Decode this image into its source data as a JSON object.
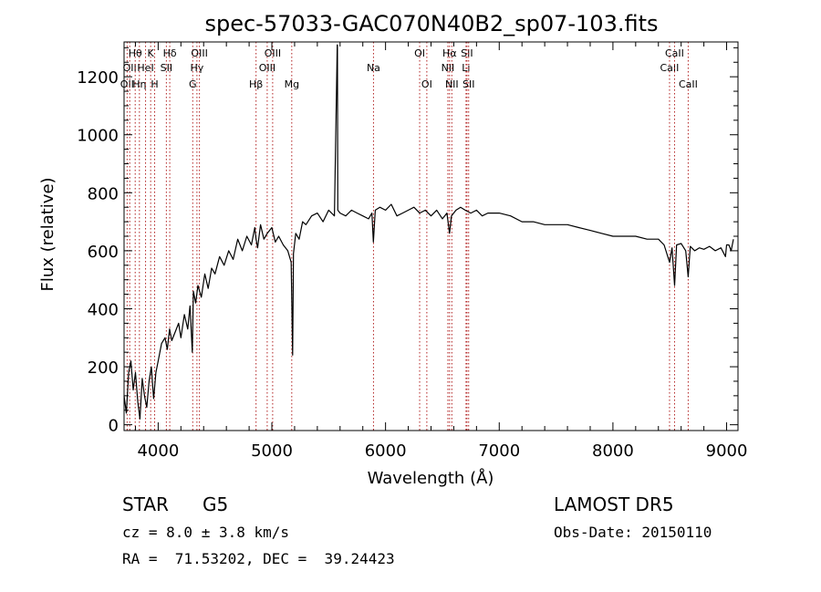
{
  "chart_data": {
    "type": "line",
    "title": "spec-57033-GAC070N40B2_sp07-103.fits",
    "xlabel": "Wavelength (Å)",
    "ylabel": "Flux (relative)",
    "xlim": [
      3700,
      9100
    ],
    "ylim": [
      -20,
      1320
    ],
    "xticks": [
      4000,
      5000,
      6000,
      7000,
      8000,
      9000
    ],
    "yticks": [
      0,
      200,
      400,
      600,
      800,
      1000,
      1200
    ],
    "grid": false,
    "series": [
      {
        "x": [
          3700,
          3720,
          3740,
          3760,
          3780,
          3800,
          3820,
          3840,
          3860,
          3880,
          3900,
          3920,
          3940,
          3960,
          3980,
          4000,
          4030,
          4060,
          4080,
          4100,
          4120,
          4150,
          4180,
          4200,
          4230,
          4260,
          4280,
          4300,
          4310,
          4330,
          4350,
          4380,
          4410,
          4440,
          4470,
          4500,
          4540,
          4580,
          4620,
          4660,
          4700,
          4740,
          4780,
          4820,
          4850,
          4861,
          4875,
          4900,
          4930,
          4960,
          5000,
          5030,
          5060,
          5100,
          5140,
          5170,
          5183,
          5190,
          5210,
          5240,
          5270,
          5300,
          5350,
          5400,
          5450,
          5500,
          5550,
          5575,
          5577,
          5580,
          5600,
          5650,
          5700,
          5750,
          5800,
          5850,
          5880,
          5893,
          5910,
          5950,
          6000,
          6050,
          6100,
          6150,
          6200,
          6250,
          6300,
          6350,
          6400,
          6450,
          6500,
          6540,
          6563,
          6580,
          6620,
          6660,
          6700,
          6750,
          6800,
          6850,
          6900,
          7000,
          7100,
          7200,
          7300,
          7400,
          7500,
          7600,
          7700,
          7800,
          7900,
          8000,
          8100,
          8200,
          8300,
          8400,
          8450,
          8498,
          8520,
          8542,
          8560,
          8600,
          8640,
          8662,
          8680,
          8720,
          8760,
          8800,
          8850,
          8900,
          8950,
          8990,
          9000,
          9020,
          9040,
          9060
        ],
        "y": [
          100,
          40,
          180,
          220,
          120,
          180,
          80,
          20,
          160,
          100,
          60,
          150,
          200,
          90,
          180,
          220,
          280,
          300,
          260,
          330,
          290,
          320,
          350,
          300,
          380,
          330,
          410,
          250,
          460,
          420,
          480,
          440,
          520,
          470,
          540,
          520,
          580,
          550,
          600,
          570,
          640,
          600,
          650,
          620,
          680,
          640,
          610,
          690,
          640,
          660,
          680,
          630,
          650,
          620,
          600,
          560,
          240,
          590,
          660,
          640,
          700,
          690,
          720,
          730,
          700,
          740,
          720,
          1310,
          1310,
          740,
          730,
          720,
          740,
          730,
          720,
          710,
          730,
          630,
          740,
          750,
          740,
          760,
          720,
          730,
          740,
          750,
          730,
          740,
          720,
          740,
          710,
          730,
          660,
          720,
          740,
          750,
          740,
          730,
          740,
          720,
          730,
          730,
          720,
          700,
          700,
          690,
          690,
          690,
          680,
          670,
          660,
          650,
          650,
          650,
          640,
          640,
          620,
          560,
          610,
          480,
          620,
          625,
          600,
          510,
          615,
          600,
          610,
          605,
          615,
          600,
          610,
          580,
          620,
          620,
          600,
          640
        ]
      }
    ],
    "line_markers": [
      {
        "wl": 3727,
        "label": "OII",
        "row": 2
      },
      {
        "wl": 3750,
        "label": "OII",
        "row": 1
      },
      {
        "wl": 3798,
        "label": "Hθ",
        "row": 0
      },
      {
        "wl": 3835,
        "label": "Hη",
        "row": 2
      },
      {
        "wl": 3889,
        "label": "HeI",
        "row": 1
      },
      {
        "wl": 3934,
        "label": "K",
        "row": 0
      },
      {
        "wl": 3969,
        "label": "H",
        "row": 2
      },
      {
        "wl": 4072,
        "label": "SII",
        "row": 1
      },
      {
        "wl": 4102,
        "label": "Hδ",
        "row": 0
      },
      {
        "wl": 4304,
        "label": "G",
        "row": 2
      },
      {
        "wl": 4341,
        "label": "Hγ",
        "row": 1
      },
      {
        "wl": 4363,
        "label": "OIII",
        "row": 0
      },
      {
        "wl": 4861,
        "label": "Hβ",
        "row": 2
      },
      {
        "wl": 4959,
        "label": "OIII",
        "row": 1
      },
      {
        "wl": 5007,
        "label": "OIII",
        "row": 0
      },
      {
        "wl": 5175,
        "label": "Mg",
        "row": 2
      },
      {
        "wl": 5894,
        "label": "Na",
        "row": 1
      },
      {
        "wl": 6300,
        "label": "OI",
        "row": 0
      },
      {
        "wl": 6363,
        "label": "OI",
        "row": 2
      },
      {
        "wl": 6548,
        "label": "NII",
        "row": 1
      },
      {
        "wl": 6563,
        "label": "Hα",
        "row": 0
      },
      {
        "wl": 6583,
        "label": "NII",
        "row": 2
      },
      {
        "wl": 6708,
        "label": "Li",
        "row": 1
      },
      {
        "wl": 6716,
        "label": "SII",
        "row": 0
      },
      {
        "wl": 6731,
        "label": "SII",
        "row": 2
      },
      {
        "wl": 8498,
        "label": "CaII",
        "row": 1
      },
      {
        "wl": 8542,
        "label": "CaII",
        "row": 0
      },
      {
        "wl": 8662,
        "label": "CaII",
        "row": 2
      }
    ],
    "colors": {
      "spectrum": "#000000",
      "markers": "#b22222",
      "axes": "#000000"
    }
  },
  "info": {
    "class": "STAR",
    "subclass": "G5",
    "survey": "LAMOST DR5",
    "redshift": "cz = 8.0 ± 3.8 km/s",
    "obs_date": "Obs-Date: 20150110",
    "coords": "RA =  71.53202, DEC =  39.24423"
  }
}
